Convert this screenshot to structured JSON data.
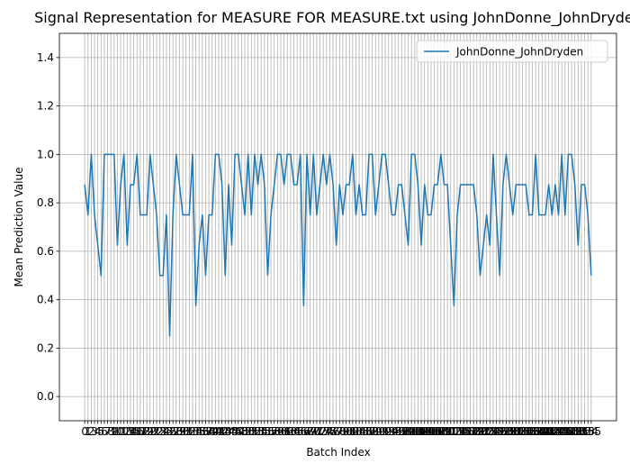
{
  "chart_data": {
    "type": "line",
    "title": "Signal Representation for MEASURE FOR MEASURE.txt using JohnDonne_JohnDryden",
    "x_label": "Batch Index",
    "y_label": "Mean Prediction Value",
    "categories": [
      0,
      1,
      2,
      3,
      4,
      5,
      6,
      7,
      8,
      9,
      10,
      11,
      12,
      13,
      14,
      15,
      16,
      17,
      18,
      19,
      20,
      21,
      22,
      23,
      24,
      25,
      26,
      27,
      28,
      29,
      30,
      31,
      32,
      33,
      34,
      35,
      36,
      37,
      38,
      39,
      40,
      41,
      42,
      43,
      44,
      45,
      46,
      47,
      48,
      49,
      50,
      51,
      52,
      53,
      54,
      55,
      56,
      57,
      58,
      59,
      60,
      61,
      62,
      63,
      64,
      65,
      66,
      67,
      68,
      69,
      70,
      71,
      72,
      73,
      74,
      75,
      76,
      77,
      78,
      79,
      80,
      81,
      82,
      83,
      84,
      85,
      86,
      87,
      88,
      89,
      90,
      91,
      92,
      93,
      94,
      95,
      96,
      97,
      98,
      99,
      100,
      101,
      102,
      103,
      104,
      105,
      106,
      107,
      108,
      109,
      110,
      111,
      112,
      113,
      114,
      115,
      116,
      117,
      118,
      119,
      120,
      121,
      122,
      123,
      124,
      125,
      126,
      127,
      128,
      129,
      130,
      131,
      132,
      133,
      134,
      135,
      136,
      137,
      138,
      139,
      140,
      141,
      142,
      143,
      144,
      145,
      146,
      147,
      148,
      149,
      150,
      151,
      152,
      153,
      154,
      155
    ],
    "series": [
      {
        "name": "JohnDonne_JohnDryden",
        "color": "#1f77b4",
        "values": [
          0.875,
          0.75,
          1,
          0.75,
          0.625,
          0.5,
          1,
          1,
          1,
          1,
          0.625,
          0.875,
          1,
          0.625,
          0.875,
          0.875,
          1,
          0.75,
          0.75,
          0.75,
          1,
          0.875,
          0.75,
          0.5,
          0.5,
          0.75,
          0.25,
          0.75,
          1,
          0.875,
          0.75,
          0.75,
          0.75,
          1,
          0.375,
          0.625,
          0.75,
          0.5,
          0.75,
          0.75,
          1,
          1,
          0.875,
          0.5,
          0.875,
          0.625,
          1,
          1,
          0.875,
          0.75,
          1,
          0.75,
          1,
          0.875,
          1,
          0.875,
          0.5,
          0.75,
          0.875,
          1,
          1,
          0.875,
          1,
          1,
          0.875,
          0.875,
          1,
          0.375,
          1,
          0.75,
          1,
          0.75,
          0.875,
          1,
          0.875,
          1,
          0.875,
          0.625,
          0.875,
          0.75,
          0.875,
          0.875,
          1,
          0.75,
          0.875,
          0.75,
          0.75,
          1,
          1,
          0.75,
          0.875,
          1,
          1,
          0.875,
          0.75,
          0.75,
          0.875,
          0.875,
          0.75,
          0.625,
          1,
          1,
          0.875,
          0.625,
          0.875,
          0.75,
          0.75,
          0.875,
          0.875,
          1,
          0.875,
          0.875,
          0.625,
          0.375,
          0.75,
          0.875,
          0.875,
          0.875,
          0.875,
          0.875,
          0.75,
          0.5,
          0.625,
          0.75,
          0.625,
          1,
          0.75,
          0.5,
          0.875,
          1,
          0.875,
          0.75,
          0.875,
          0.875,
          0.875,
          0.875,
          0.75,
          0.75,
          1,
          0.75,
          0.75,
          0.75,
          0.875,
          0.75,
          0.875,
          0.75,
          1,
          0.75,
          1,
          1,
          0.875,
          0.625,
          0.875,
          0.875,
          0.75,
          0.5
        ]
      }
    ],
    "ylim": [
      -0.1,
      1.5
    ],
    "yticks": [
      {
        "value": 0,
        "label": "0.0"
      },
      {
        "value": 0.2,
        "label": "0.2"
      },
      {
        "value": 0.4,
        "label": "0.4"
      },
      {
        "value": 0.6,
        "label": "0.6"
      },
      {
        "value": 0.8,
        "label": "0.8"
      },
      {
        "value": 1,
        "label": "1.0"
      },
      {
        "value": 1.2,
        "label": "1.2"
      },
      {
        "value": 1.4,
        "label": "1.4"
      }
    ],
    "grid": true,
    "legend": "upper right"
  }
}
